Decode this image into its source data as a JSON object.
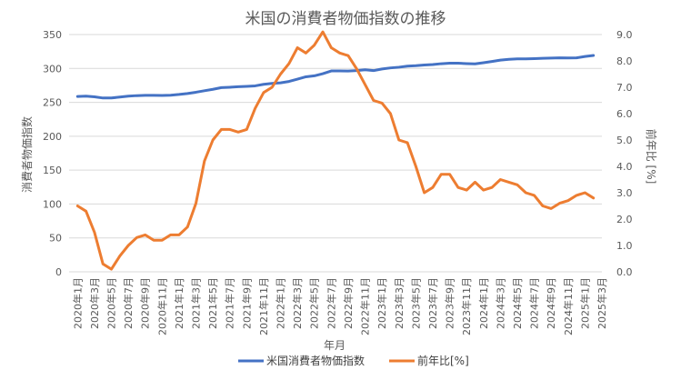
{
  "chart_data": {
    "type": "line",
    "title": "米国の消費者物価指数の推移",
    "xlabel": "年月",
    "ylabel_left": "消費者物価指数",
    "ylabel_right": "前年比 [%]",
    "ylim_left": [
      0,
      350
    ],
    "ylim_right": [
      0.0,
      9.0
    ],
    "yticks_left": [
      "0",
      "50",
      "100",
      "150",
      "200",
      "250",
      "300",
      "350"
    ],
    "yticks_right": [
      "0.0",
      "1.0",
      "2.0",
      "3.0",
      "4.0",
      "5.0",
      "6.0",
      "7.0",
      "8.0",
      "9.0"
    ],
    "grid": true,
    "legend_position": "bottom",
    "x_tick_labels": [
      "2020年1月",
      "2020年3月",
      "2020年5月",
      "2020年7月",
      "2020年9月",
      "2020年11月",
      "2021年1月",
      "2021年3月",
      "2021年5月",
      "2021年7月",
      "2021年9月",
      "2021年11月",
      "2022年1月",
      "2022年3月",
      "2022年5月",
      "2022年7月",
      "2022年9月",
      "2022年11月",
      "2023年1月",
      "2023年3月",
      "2023年5月",
      "2023年7月",
      "2023年9月",
      "2023年11月",
      "2024年1月",
      "2024年3月",
      "2024年5月",
      "2024年7月",
      "2024年9月",
      "2024年11月",
      "2025年1月",
      "2025年3月"
    ],
    "series": [
      {
        "name": "米国消費者物価指数",
        "axis": "left",
        "color": "#4472C4",
        "values": [
          258.7,
          259.2,
          258.1,
          256.4,
          256.4,
          257.8,
          259.1,
          259.9,
          260.3,
          260.4,
          260.2,
          260.5,
          261.6,
          263.0,
          264.9,
          267.1,
          269.2,
          271.7,
          272.3,
          273.0,
          273.6,
          274.3,
          276.6,
          277.9,
          278.8,
          280.8,
          284.2,
          287.7,
          289.1,
          292.3,
          296.3,
          296.3,
          296.2,
          296.8,
          298.0,
          296.8,
          299.2,
          300.8,
          301.8,
          303.4,
          304.1,
          305.1,
          305.7,
          307.0,
          307.8,
          307.7,
          307.1,
          306.7,
          308.4,
          310.3,
          312.3,
          313.5,
          314.1,
          314.2,
          314.5,
          315.0,
          315.3,
          315.7,
          315.5,
          315.6,
          317.7,
          319.1
        ]
      },
      {
        "name": "前年比[%]",
        "axis": "right",
        "color": "#ED7D31",
        "values": [
          2.5,
          2.3,
          1.5,
          0.3,
          0.1,
          0.6,
          1.0,
          1.3,
          1.4,
          1.2,
          1.2,
          1.4,
          1.4,
          1.7,
          2.6,
          4.2,
          5.0,
          5.4,
          5.4,
          5.3,
          5.4,
          6.2,
          6.8,
          7.0,
          7.5,
          7.9,
          8.5,
          8.3,
          8.6,
          9.1,
          8.5,
          8.3,
          8.2,
          7.7,
          7.1,
          6.5,
          6.4,
          6.0,
          5.0,
          4.9,
          4.0,
          3.0,
          3.2,
          3.7,
          3.7,
          3.2,
          3.1,
          3.4,
          3.1,
          3.2,
          3.5,
          3.4,
          3.3,
          3.0,
          2.9,
          2.5,
          2.4,
          2.6,
          2.7,
          2.9,
          3.0,
          2.8
        ]
      }
    ]
  }
}
